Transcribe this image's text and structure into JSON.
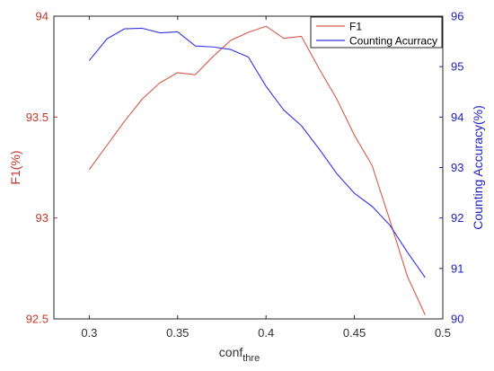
{
  "chart_data": {
    "type": "line",
    "xlabel": "conf",
    "xlabel_sub": "thre",
    "ylabel_left": "F1(%)",
    "ylabel_right": "Counting Accuracy(%)",
    "xlim": [
      0.28,
      0.5
    ],
    "ylim_left": [
      92.5,
      94
    ],
    "ylim_right": [
      90,
      96
    ],
    "x_ticks": [
      "0.3",
      "0.35",
      "0.4",
      "0.45",
      "0.5"
    ],
    "y_left_ticks": [
      "92.5",
      "93",
      "93.5",
      "94"
    ],
    "y_right_ticks": [
      "90",
      "91",
      "92",
      "93",
      "94",
      "95",
      "96"
    ],
    "legend_position": "top-right",
    "x": [
      0.3,
      0.31,
      0.32,
      0.33,
      0.34,
      0.35,
      0.36,
      0.37,
      0.38,
      0.39,
      0.4,
      0.41,
      0.42,
      0.43,
      0.44,
      0.45,
      0.46,
      0.47,
      0.48,
      0.49
    ],
    "series": [
      {
        "name": "F1",
        "axis": "left",
        "color": "#d45a4a",
        "values": [
          93.24,
          93.36,
          93.48,
          93.59,
          93.67,
          93.72,
          93.71,
          93.8,
          93.88,
          93.92,
          93.95,
          93.89,
          93.9,
          93.74,
          93.59,
          93.41,
          93.26,
          92.99,
          92.71,
          92.52
        ]
      },
      {
        "name": "Counting Acurracy",
        "axis": "right",
        "color": "#3333dd",
        "values": [
          95.12,
          95.55,
          95.75,
          95.76,
          95.67,
          95.69,
          95.41,
          95.39,
          95.34,
          95.19,
          94.61,
          94.14,
          93.83,
          93.37,
          92.88,
          92.49,
          92.23,
          91.86,
          91.32,
          90.82
        ]
      }
    ]
  }
}
